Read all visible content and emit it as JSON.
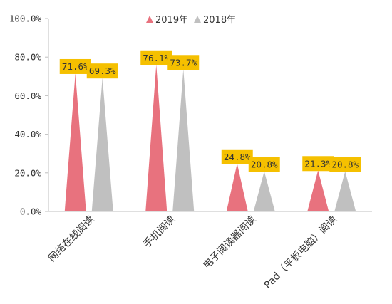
{
  "chart_data": {
    "type": "bar",
    "mark_shape": "triangle",
    "categories": [
      "网络在线阅读",
      "手机阅读",
      "电子阅读器阅读",
      "Pad（平板电脑）阅读"
    ],
    "series": [
      {
        "name": "2019年",
        "values": [
          71.6,
          76.1,
          24.8,
          21.3
        ],
        "color": "#e8727e"
      },
      {
        "name": "2018年",
        "values": [
          69.3,
          73.7,
          20.8,
          20.8
        ],
        "color": "#c0c0c0"
      }
    ],
    "data_labels": [
      [
        "71.6%",
        "76.1%",
        "24.8%",
        "21.3%"
      ],
      [
        "69.3%",
        "73.7%",
        "20.8%",
        "20.8%"
      ]
    ],
    "y_ticks": [
      "0.0%",
      "20.0%",
      "40.0%",
      "60.0%",
      "80.0%",
      "100.0%"
    ],
    "ylim": [
      0,
      100
    ],
    "title": "",
    "xlabel": "",
    "ylabel": "",
    "legend_position": "top",
    "grid": false,
    "label_box_color": "#f5c000"
  }
}
